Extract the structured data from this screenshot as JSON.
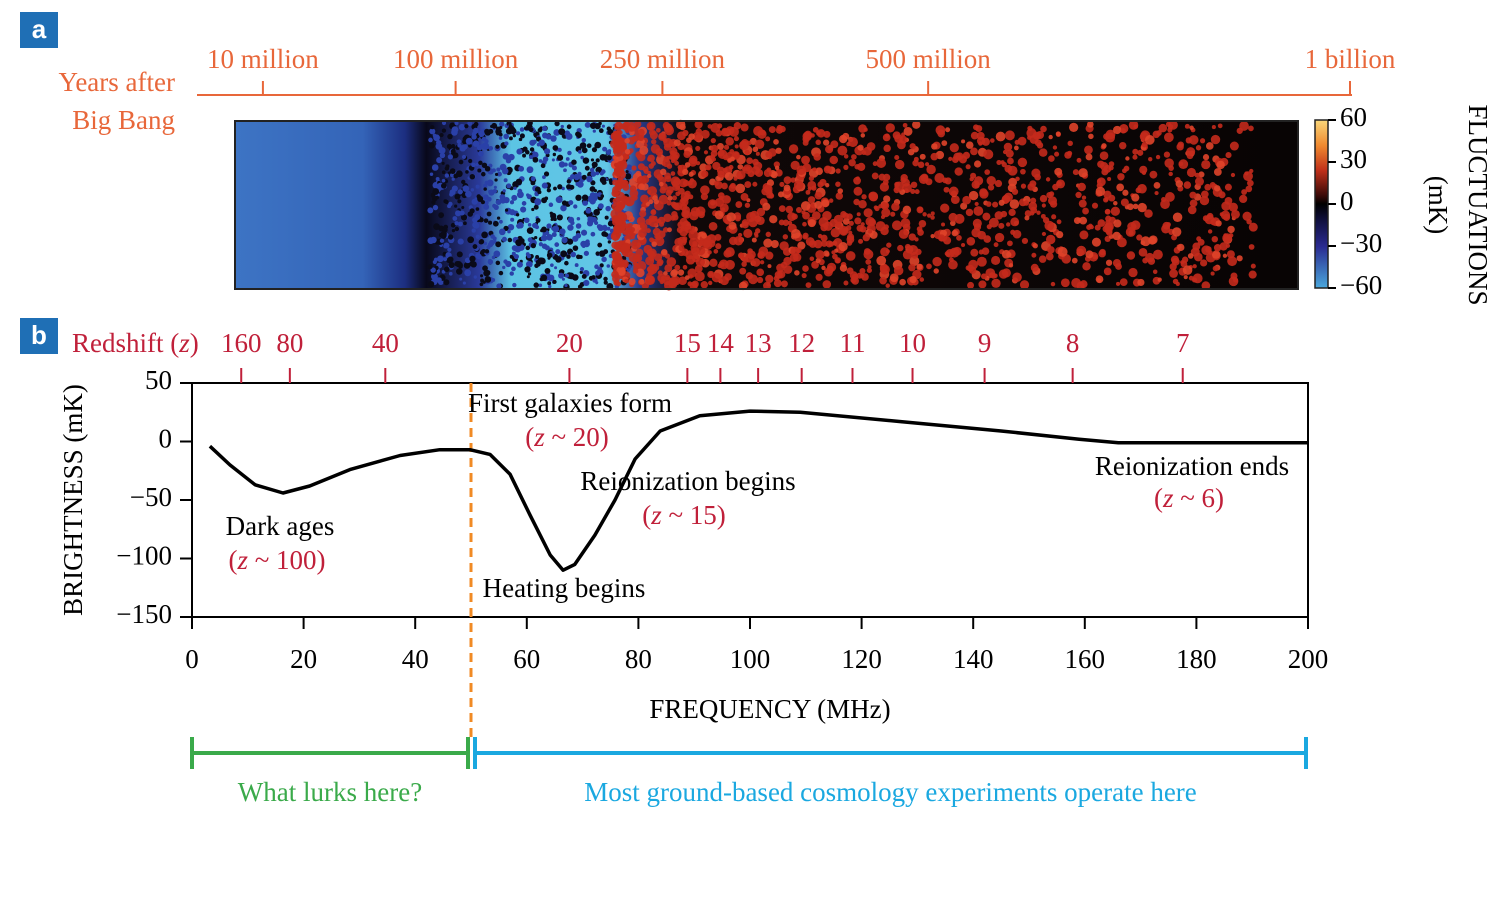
{
  "chart_data": [
    {
      "type": "heatmap",
      "label": "a",
      "x_axis_title": [
        "Years after",
        "Big Bang"
      ],
      "axis_color": "#e8673a",
      "xlim": [
        0,
        1000000000
      ],
      "xticks": [
        {
          "value": 10000000,
          "label": "10 million"
        },
        {
          "value": 100000000,
          "label": "100 million"
        },
        {
          "value": 250000000,
          "label": "250 million"
        },
        {
          "value": 500000000,
          "label": "500 million"
        },
        {
          "value": 1000000000,
          "label": "1 billion"
        }
      ],
      "colorbar": {
        "title": [
          "FLUCTUATIONS",
          "(mK)"
        ],
        "ylim": [
          -60,
          60
        ],
        "yticks": [
          60,
          30,
          0,
          {
            "value": -30,
            "label": "−30"
          },
          {
            "value": -60,
            "label": "−60"
          }
        ]
      }
    },
    {
      "type": "line",
      "label": "b",
      "x_label": "FREQUENCY (MHz)",
      "y_label": "BRIGHTNESS (mK)",
      "xlim": [
        0,
        200
      ],
      "xticks": [
        0,
        20,
        40,
        60,
        80,
        100,
        120,
        140,
        160,
        180,
        200
      ],
      "ylim": [
        -150,
        50
      ],
      "yticks": [
        50,
        0,
        {
          "value": -50,
          "label": "−50"
        },
        {
          "value": -100,
          "label": "−100"
        },
        {
          "value": -150,
          "label": "−150"
        }
      ],
      "top_axis": {
        "title": "Redshift (z)",
        "color": "#c0203a",
        "ticks": [
          160,
          80,
          40,
          20,
          15,
          14,
          13,
          12,
          11,
          10,
          9,
          8,
          7
        ]
      },
      "x": [
        3.2,
        6.8,
        11.3,
        16.3,
        21.1,
        28.3,
        37.3,
        44.4,
        49.8,
        53.4,
        57,
        60.6,
        64.2,
        66.5,
        68.6,
        72.2,
        75.8,
        79.4,
        83.9,
        91,
        100,
        109,
        127,
        145,
        159,
        166,
        180.6,
        200
      ],
      "series": [
        {
          "color": "#000000",
          "values": [
            -4,
            -20,
            -37,
            -44,
            -38,
            -24,
            -12,
            -7,
            -7,
            -11,
            -28,
            -63,
            -97,
            -110,
            -105,
            -80,
            -50,
            -15,
            9,
            22,
            26,
            25,
            17,
            9,
            2,
            -1,
            -1,
            -1
          ]
        }
      ],
      "vline": {
        "x": 50,
        "color": "#f08a24"
      },
      "annotations": [
        {
          "text": "First galaxies form",
          "color": "#000000"
        },
        {
          "text": "(z ~ 20)",
          "color": "#c0203a"
        },
        {
          "text": "Dark ages",
          "color": "#000000"
        },
        {
          "text": "(z ~ 100)",
          "color": "#c0203a"
        },
        {
          "text": "Heating begins",
          "color": "#000000"
        },
        {
          "text": "Reionization begins",
          "color": "#000000"
        },
        {
          "text": "(z ~ 15)",
          "color": "#c0203a"
        },
        {
          "text": "Reionization ends",
          "color": "#000000"
        },
        {
          "text": "(z ~ 6)",
          "color": "#c0203a"
        }
      ],
      "ranges": [
        {
          "label": "What lurks here?",
          "color": "#3aaa4a",
          "from": 0,
          "to": 50
        },
        {
          "label": "Most ground-based cosmology experiments operate here",
          "color": "#1aa8e0",
          "from": 50,
          "to": 200
        }
      ]
    }
  ]
}
